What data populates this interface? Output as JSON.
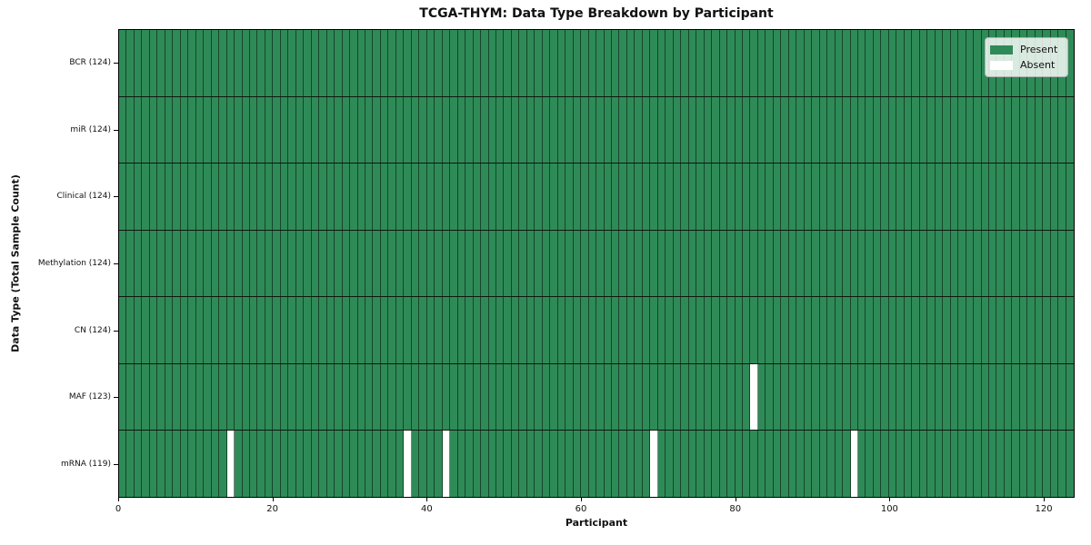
{
  "chart_data": {
    "type": "heatmap",
    "title": "TCGA-THYM: Data Type Breakdown by Participant",
    "xlabel": "Participant",
    "ylabel": "Data Type (Total Sample Count)",
    "x_range": [
      0,
      124
    ],
    "x_ticks": [
      0,
      20,
      40,
      60,
      80,
      100,
      120
    ],
    "n_participants": 124,
    "legend_position": "upper-right",
    "legend": [
      {
        "label": "Present",
        "color": "#2e8b57"
      },
      {
        "label": "Absent",
        "color": "#ffffff"
      }
    ],
    "rows": [
      {
        "label": "BCR (124)",
        "total": 124,
        "absent_participants": []
      },
      {
        "label": "miR (124)",
        "total": 124,
        "absent_participants": []
      },
      {
        "label": "Clinical (124)",
        "total": 124,
        "absent_participants": []
      },
      {
        "label": "Methylation (124)",
        "total": 124,
        "absent_participants": []
      },
      {
        "label": "CN (124)",
        "total": 124,
        "absent_participants": []
      },
      {
        "label": "MAF (123)",
        "total": 123,
        "absent_participants": [
          82
        ]
      },
      {
        "label": "mRNA (119)",
        "total": 119,
        "absent_participants": [
          14,
          37,
          42,
          69,
          95
        ]
      }
    ],
    "colors": {
      "present": "#2e8b57",
      "absent": "#ffffff",
      "cell_edge": "rgba(0,0,0,0.5)",
      "row_separator": "#101810",
      "frame": "#000000",
      "legend_border": "#b3b3b3"
    }
  }
}
